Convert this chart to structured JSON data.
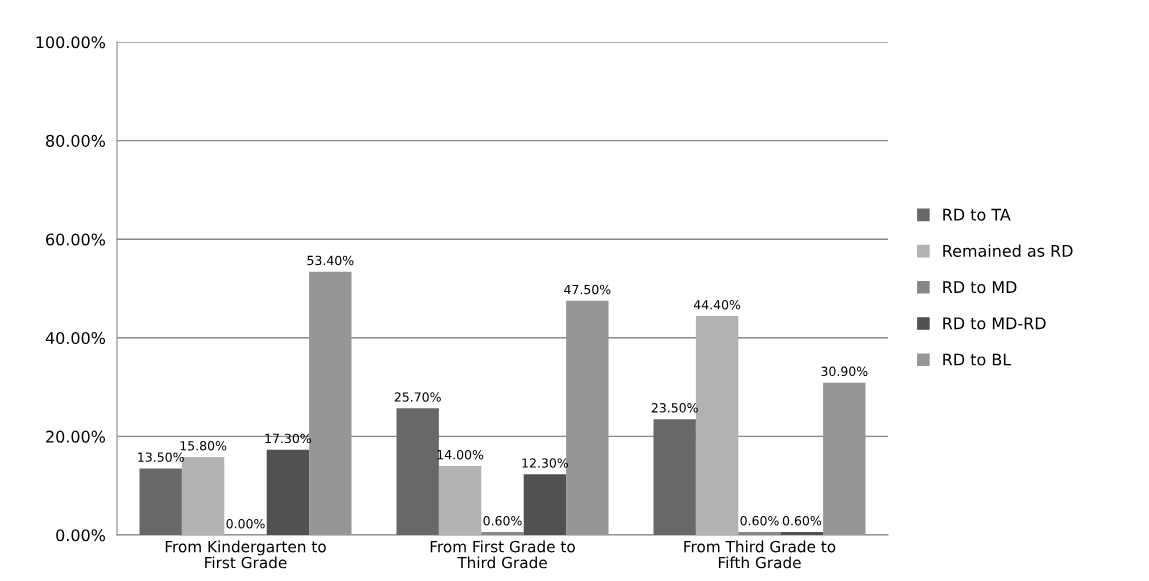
{
  "chart_data": {
    "type": "bar",
    "categories": [
      "From Kindergarten to\nFirst Grade",
      "From First Grade to\nThird Grade",
      "From Third Grade to\nFifth Grade"
    ],
    "series": [
      {
        "name": "RD to TA",
        "color": "#686868",
        "values": [
          13.5,
          25.7,
          23.5
        ],
        "value_labels": [
          "13.50%",
          "25.70%",
          "23.50%"
        ]
      },
      {
        "name": "Remained as RD",
        "color": "#b2b2b2",
        "values": [
          15.8,
          14.0,
          44.4
        ],
        "value_labels": [
          "15.80%",
          "14.00%",
          "44.40%"
        ]
      },
      {
        "name": "RD to MD",
        "color": "#878787",
        "values": [
          0.0,
          0.6,
          0.6
        ],
        "value_labels": [
          "0.00%",
          "0.60%",
          "0.60%"
        ]
      },
      {
        "name": "RD to MD-RD",
        "color": "#515151",
        "values": [
          17.3,
          12.3,
          0.6
        ],
        "value_labels": [
          "17.30%",
          "12.30%",
          "0.60%"
        ]
      },
      {
        "name": "RD to BL",
        "color": "#969696",
        "values": [
          53.4,
          47.5,
          30.9
        ],
        "value_labels": [
          "53.40%",
          "47.50%",
          "30.90%"
        ]
      }
    ],
    "ylim": [
      0,
      100
    ],
    "yticks": [
      {
        "value": 0,
        "label": "0.00%"
      },
      {
        "value": 20,
        "label": "20.00%"
      },
      {
        "value": 40,
        "label": "40.00%"
      },
      {
        "value": 60,
        "label": "60.00%"
      },
      {
        "value": 80,
        "label": "80.00%"
      },
      {
        "value": 100,
        "label": "100.00%"
      }
    ],
    "grid": "y",
    "legend": "right"
  }
}
